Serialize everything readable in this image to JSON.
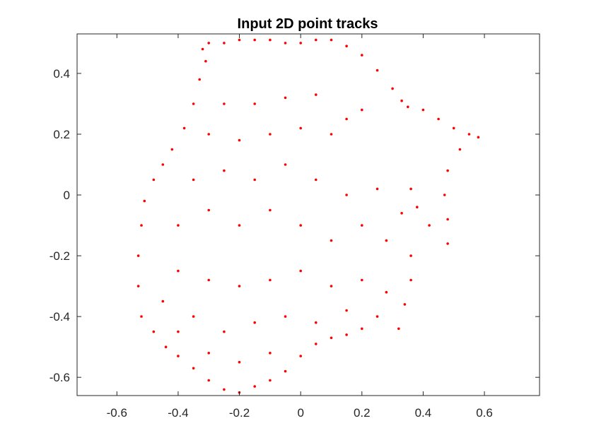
{
  "chart_data": {
    "type": "scatter",
    "title": "Input 2D point tracks",
    "xlabel": "",
    "ylabel": "",
    "xlim": [
      -0.73,
      0.78
    ],
    "ylim": [
      -0.66,
      0.53
    ],
    "x_ticks": [
      "-0.6",
      "-0.4",
      "-0.2",
      "0",
      "0.2",
      "0.4",
      "0.6"
    ],
    "y_ticks": [
      "0.4",
      "0.2",
      "0",
      "-0.2",
      "-0.4",
      "-0.6"
    ],
    "x_tick_values": [
      -0.6,
      -0.4,
      -0.2,
      0,
      0.2,
      0.4,
      0.6
    ],
    "y_tick_values": [
      0.4,
      0.2,
      0,
      -0.2,
      -0.4,
      -0.6
    ],
    "grid": false,
    "legend": "none",
    "marker_color": "#ff0000",
    "series": [
      {
        "points": [
          [
            -0.32,
            0.48
          ],
          [
            -0.3,
            0.5
          ],
          [
            -0.25,
            0.5
          ],
          [
            -0.2,
            0.51
          ],
          [
            -0.15,
            0.51
          ],
          [
            -0.1,
            0.51
          ],
          [
            -0.05,
            0.5
          ],
          [
            0.0,
            0.5
          ],
          [
            0.05,
            0.51
          ],
          [
            0.1,
            0.51
          ],
          [
            0.15,
            0.49
          ],
          [
            0.2,
            0.46
          ],
          [
            0.25,
            0.41
          ],
          [
            0.3,
            0.35
          ],
          [
            0.33,
            0.31
          ],
          [
            0.35,
            0.29
          ],
          [
            0.4,
            0.28
          ],
          [
            0.45,
            0.25
          ],
          [
            0.5,
            0.22
          ],
          [
            0.55,
            0.2
          ],
          [
            0.58,
            0.19
          ],
          [
            0.52,
            0.15
          ],
          [
            0.48,
            0.08
          ],
          [
            0.47,
            0.0
          ],
          [
            0.48,
            -0.08
          ],
          [
            0.48,
            -0.16
          ],
          [
            0.42,
            -0.1
          ],
          [
            0.38,
            -0.04
          ],
          [
            0.36,
            0.02
          ],
          [
            0.33,
            -0.06
          ],
          [
            0.36,
            -0.2
          ],
          [
            0.36,
            -0.28
          ],
          [
            0.34,
            -0.36
          ],
          [
            0.32,
            -0.44
          ],
          [
            0.25,
            -0.4
          ],
          [
            0.2,
            -0.44
          ],
          [
            0.15,
            -0.46
          ],
          [
            0.1,
            -0.47
          ],
          [
            0.05,
            -0.49
          ],
          [
            0.0,
            -0.53
          ],
          [
            -0.05,
            -0.58
          ],
          [
            -0.1,
            -0.61
          ],
          [
            -0.15,
            -0.63
          ],
          [
            -0.2,
            -0.65
          ],
          [
            -0.25,
            -0.64
          ],
          [
            -0.3,
            -0.61
          ],
          [
            -0.35,
            -0.57
          ],
          [
            -0.4,
            -0.53
          ],
          [
            -0.44,
            -0.5
          ],
          [
            -0.48,
            -0.45
          ],
          [
            -0.52,
            -0.4
          ],
          [
            -0.53,
            -0.3
          ],
          [
            -0.53,
            -0.2
          ],
          [
            -0.52,
            -0.1
          ],
          [
            -0.51,
            -0.02
          ],
          [
            -0.48,
            0.05
          ],
          [
            -0.45,
            0.1
          ],
          [
            -0.42,
            0.15
          ],
          [
            -0.38,
            0.22
          ],
          [
            -0.35,
            0.3
          ],
          [
            -0.33,
            0.38
          ],
          [
            -0.31,
            0.44
          ],
          [
            -0.25,
            0.3
          ],
          [
            -0.15,
            0.3
          ],
          [
            -0.05,
            0.32
          ],
          [
            0.05,
            0.33
          ],
          [
            0.15,
            0.25
          ],
          [
            0.2,
            0.28
          ],
          [
            -0.3,
            0.2
          ],
          [
            -0.2,
            0.18
          ],
          [
            -0.1,
            0.2
          ],
          [
            0.0,
            0.22
          ],
          [
            0.1,
            0.2
          ],
          [
            -0.35,
            0.05
          ],
          [
            -0.25,
            0.08
          ],
          [
            -0.15,
            0.05
          ],
          [
            -0.05,
            0.1
          ],
          [
            0.05,
            0.05
          ],
          [
            0.15,
            0.0
          ],
          [
            0.25,
            0.02
          ],
          [
            -0.4,
            -0.1
          ],
          [
            -0.3,
            -0.05
          ],
          [
            -0.2,
            -0.1
          ],
          [
            -0.1,
            -0.05
          ],
          [
            0.0,
            -0.1
          ],
          [
            0.1,
            -0.15
          ],
          [
            0.2,
            -0.1
          ],
          [
            0.28,
            -0.15
          ],
          [
            -0.4,
            -0.25
          ],
          [
            -0.3,
            -0.28
          ],
          [
            -0.2,
            -0.3
          ],
          [
            -0.1,
            -0.28
          ],
          [
            0.0,
            -0.25
          ],
          [
            0.1,
            -0.3
          ],
          [
            0.2,
            -0.28
          ],
          [
            0.28,
            -0.32
          ],
          [
            -0.45,
            -0.35
          ],
          [
            -0.35,
            -0.4
          ],
          [
            -0.25,
            -0.45
          ],
          [
            -0.15,
            -0.42
          ],
          [
            -0.05,
            -0.4
          ],
          [
            0.05,
            -0.42
          ],
          [
            0.15,
            -0.38
          ],
          [
            -0.4,
            -0.45
          ],
          [
            -0.3,
            -0.52
          ],
          [
            -0.2,
            -0.55
          ],
          [
            -0.1,
            -0.52
          ]
        ]
      }
    ]
  }
}
